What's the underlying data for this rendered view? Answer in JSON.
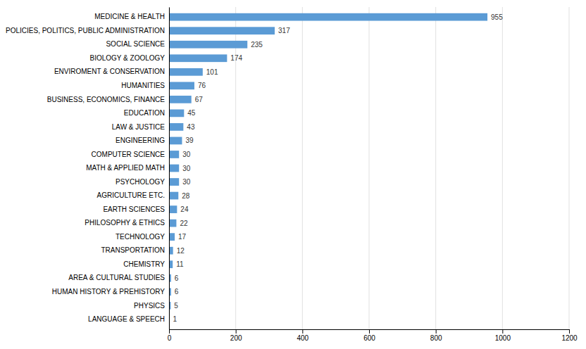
{
  "chart_data": {
    "type": "bar",
    "orientation": "horizontal",
    "categories": [
      "MEDICINE & HEALTH",
      "POLICIES, POLITICS, PUBLIC ADMINISTRATION",
      "SOCIAL SCIENCE",
      "BIOLOGY & ZOOLOGY",
      "ENVIROMENT & CONSERVATION",
      "HUMANITIES",
      "BUSINESS, ECONOMICS, FINANCE",
      "EDUCATION",
      "LAW & JUSTICE",
      "ENGINEERING",
      "COMPUTER SCIENCE",
      "MATH & APPLIED MATH",
      "PSYCHOLOGY",
      "AGRICULTURE ETC.",
      "EARTH SCIENCES",
      "PHILOSOPHY & ETHICS",
      "TECHNOLOGY",
      "TRANSPORTATION",
      "CHEMISTRY",
      "AREA & CULTURAL STUDIES",
      "HUMAN HISTORY & PREHISTORY",
      "PHYSICS",
      "LANGUAGE & SPEECH"
    ],
    "values": [
      955,
      317,
      235,
      174,
      101,
      76,
      67,
      45,
      43,
      39,
      30,
      30,
      30,
      28,
      24,
      22,
      17,
      12,
      11,
      6,
      6,
      5,
      1
    ],
    "color": "#5B9BD5",
    "xlim": [
      0,
      1200
    ],
    "xticks": [
      0,
      200,
      400,
      600,
      800,
      1000,
      1200
    ],
    "grid": true,
    "data_labels": true
  }
}
